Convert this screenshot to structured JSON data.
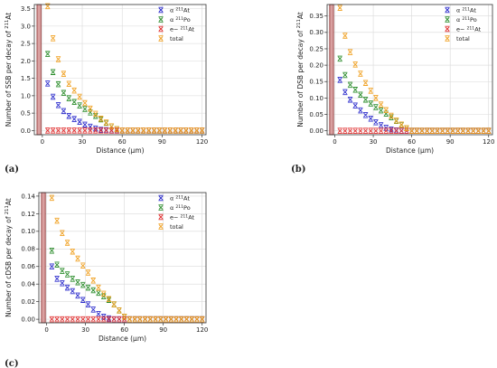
{
  "chart_data": [
    {
      "type": "scatter",
      "panel_label": "(a)",
      "xlabel": "Distance (µm)",
      "ylabel": "Number of SSB per decay of 211At",
      "xlim": [
        -6,
        123
      ],
      "ylim": [
        -0.12,
        3.62
      ],
      "xticks": [
        0,
        30,
        60,
        90,
        120
      ],
      "yticks": [
        0.0,
        0.5,
        1.0,
        1.5,
        2.0,
        2.5,
        3.0,
        3.5
      ],
      "ytick_decimals": 1,
      "grid": true,
      "legend": "top-right",
      "shaded_region": {
        "x": [
          -4,
          -1
        ]
      },
      "x": [
        4,
        8,
        12,
        16,
        20,
        24,
        28,
        32,
        36,
        40,
        44,
        48,
        52,
        56,
        60,
        64,
        68,
        72,
        76,
        80,
        84,
        88,
        92,
        96,
        100,
        104,
        108,
        112,
        116,
        120
      ],
      "series": [
        {
          "name": "α 211At",
          "color": "#2b2bcc",
          "values": [
            1.35,
            0.97,
            0.73,
            0.56,
            0.42,
            0.33,
            0.25,
            0.17,
            0.11,
            0.06,
            0.02,
            0.01,
            0,
            0,
            0,
            0,
            0,
            0,
            0,
            0,
            0,
            0,
            0,
            0,
            0,
            0,
            0,
            0,
            0,
            0
          ]
        },
        {
          "name": "α 211Po",
          "color": "#2a8c2a",
          "values": [
            2.2,
            1.68,
            1.33,
            1.08,
            0.93,
            0.82,
            0.72,
            0.62,
            0.52,
            0.42,
            0.32,
            0.22,
            0.12,
            0.04,
            0,
            0,
            0,
            0,
            0,
            0,
            0,
            0,
            0,
            0,
            0,
            0,
            0,
            0,
            0,
            0
          ]
        },
        {
          "name": "e− 211At",
          "color": "#e03030",
          "values": [
            0,
            0,
            0,
            0,
            0,
            0,
            0,
            0,
            0,
            0,
            0,
            0,
            0,
            0,
            0,
            0,
            0,
            0,
            0,
            0,
            0,
            0,
            0,
            0,
            0,
            0,
            0,
            0,
            0,
            0
          ]
        },
        {
          "name": "total",
          "color": "#f0a020",
          "values": [
            3.57,
            2.65,
            2.05,
            1.63,
            1.34,
            1.15,
            0.97,
            0.79,
            0.63,
            0.48,
            0.34,
            0.23,
            0.12,
            0.04,
            0,
            0,
            0,
            0,
            0,
            0,
            0,
            0,
            0,
            0,
            0,
            0,
            0,
            0,
            0,
            0
          ]
        }
      ]
    },
    {
      "type": "scatter",
      "panel_label": "(b)",
      "xlabel": "Distance (µm)",
      "ylabel": "Number of DSB per decay of 211At",
      "xlim": [
        -6,
        123
      ],
      "ylim": [
        -0.012,
        0.385
      ],
      "xticks": [
        0,
        30,
        60,
        90,
        120
      ],
      "yticks": [
        0.0,
        0.05,
        0.1,
        0.15,
        0.2,
        0.25,
        0.3,
        0.35
      ],
      "ytick_decimals": 2,
      "grid": true,
      "legend": "top-right",
      "shaded_region": {
        "x": [
          -4,
          -1
        ]
      },
      "x": [
        4,
        8,
        12,
        16,
        20,
        24,
        28,
        32,
        36,
        40,
        44,
        48,
        52,
        56,
        60,
        64,
        68,
        72,
        76,
        80,
        84,
        88,
        92,
        96,
        100,
        104,
        108,
        112,
        116,
        120
      ],
      "series": [
        {
          "name": "α 211At",
          "color": "#2b2bcc",
          "values": [
            0.155,
            0.118,
            0.095,
            0.077,
            0.062,
            0.048,
            0.037,
            0.026,
            0.017,
            0.009,
            0.004,
            0.001,
            0,
            0,
            0,
            0,
            0,
            0,
            0,
            0,
            0,
            0,
            0,
            0,
            0,
            0,
            0,
            0,
            0,
            0
          ]
        },
        {
          "name": "α 211Po",
          "color": "#2a8c2a",
          "values": [
            0.22,
            0.17,
            0.14,
            0.125,
            0.11,
            0.095,
            0.083,
            0.072,
            0.062,
            0.052,
            0.041,
            0.03,
            0.018,
            0.008,
            0,
            0,
            0,
            0,
            0,
            0,
            0,
            0,
            0,
            0,
            0,
            0,
            0,
            0,
            0,
            0
          ]
        },
        {
          "name": "e− 211At",
          "color": "#e03030",
          "values": [
            0,
            0,
            0,
            0,
            0,
            0,
            0,
            0,
            0,
            0,
            0,
            0,
            0,
            0,
            0,
            0,
            0,
            0,
            0,
            0,
            0,
            0,
            0,
            0,
            0,
            0,
            0,
            0,
            0,
            0
          ]
        },
        {
          "name": "total",
          "color": "#f0a020",
          "values": [
            0.375,
            0.29,
            0.24,
            0.202,
            0.174,
            0.146,
            0.122,
            0.1,
            0.08,
            0.063,
            0.046,
            0.031,
            0.019,
            0.008,
            0,
            0,
            0,
            0,
            0,
            0,
            0,
            0,
            0,
            0,
            0,
            0,
            0,
            0,
            0,
            0
          ]
        }
      ]
    },
    {
      "type": "scatter",
      "panel_label": "(c)",
      "xlabel": "Distance (µm)",
      "ylabel": "Number of cDSB per decay of 211At",
      "xlim": [
        -6,
        123
      ],
      "ylim": [
        -0.004,
        0.144
      ],
      "xticks": [
        0,
        30,
        60,
        90,
        120
      ],
      "yticks": [
        0.0,
        0.02,
        0.04,
        0.06,
        0.08,
        0.1,
        0.12,
        0.14
      ],
      "ytick_decimals": 2,
      "grid": true,
      "legend": "top-right",
      "shaded_region": {
        "x": [
          -4,
          -1
        ]
      },
      "x": [
        4,
        8,
        12,
        16,
        20,
        24,
        28,
        32,
        36,
        40,
        44,
        48,
        52,
        56,
        60,
        64,
        68,
        72,
        76,
        80,
        84,
        88,
        92,
        96,
        100,
        104,
        108,
        112,
        116,
        120
      ],
      "series": [
        {
          "name": "α 211At",
          "color": "#2b2bcc",
          "values": [
            0.06,
            0.046,
            0.041,
            0.036,
            0.032,
            0.027,
            0.022,
            0.017,
            0.011,
            0.006,
            0.003,
            0.001,
            0,
            0,
            0,
            0,
            0,
            0,
            0,
            0,
            0,
            0,
            0,
            0,
            0,
            0,
            0,
            0,
            0,
            0
          ]
        },
        {
          "name": "α 211Po",
          "color": "#2a8c2a",
          "values": [
            0.078,
            0.062,
            0.055,
            0.051,
            0.046,
            0.042,
            0.039,
            0.036,
            0.033,
            0.03,
            0.026,
            0.022,
            0.017,
            0.01,
            0.003,
            0,
            0,
            0,
            0,
            0,
            0,
            0,
            0,
            0,
            0,
            0,
            0,
            0,
            0,
            0
          ]
        },
        {
          "name": "e− 211At",
          "color": "#e03030",
          "values": [
            0,
            0,
            0,
            0,
            0,
            0,
            0,
            0,
            0,
            0,
            0,
            0,
            0,
            0,
            0,
            0,
            0,
            0,
            0,
            0,
            0,
            0,
            0,
            0,
            0,
            0,
            0,
            0,
            0,
            0
          ]
        },
        {
          "name": "total",
          "color": "#f0a020",
          "values": [
            0.138,
            0.112,
            0.098,
            0.087,
            0.077,
            0.069,
            0.061,
            0.053,
            0.044,
            0.036,
            0.029,
            0.023,
            0.017,
            0.01,
            0.003,
            0,
            0,
            0,
            0,
            0,
            0,
            0,
            0,
            0,
            0,
            0,
            0,
            0,
            0,
            0
          ]
        }
      ]
    }
  ]
}
